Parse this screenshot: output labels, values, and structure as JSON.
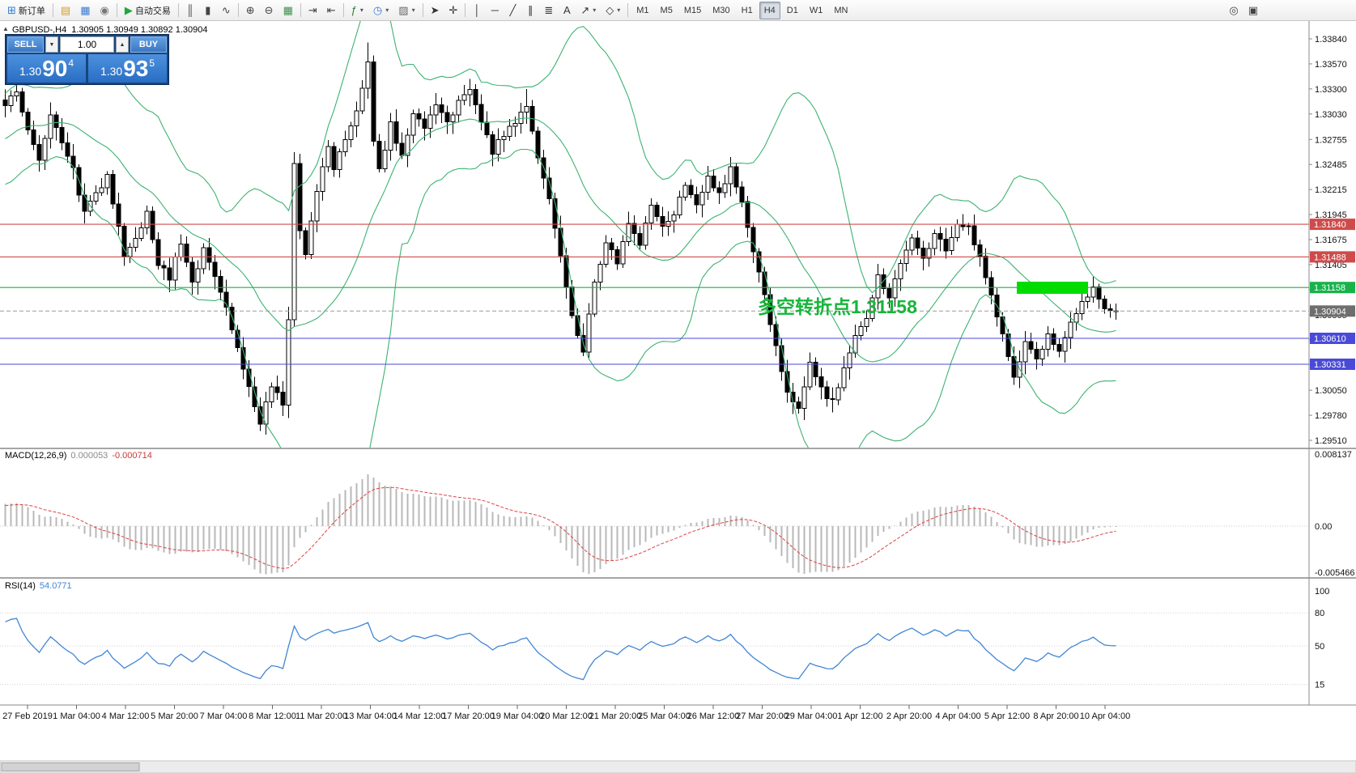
{
  "toolbar": {
    "caret_glyph": "▾",
    "groups": [
      {
        "items": [
          {
            "name": "new-order-button",
            "glyph": "⊞",
            "glyph_color": "#2f7dd0",
            "label": "新订单"
          }
        ]
      },
      {
        "items": [
          {
            "name": "market-watch-button",
            "glyph": "▤",
            "glyph_color": "#d99c20"
          },
          {
            "name": "data-window-button",
            "glyph": "▦",
            "glyph_color": "#3a7bd5"
          },
          {
            "name": "navigator-button",
            "glyph": "◉",
            "glyph_color": "#777777"
          }
        ]
      },
      {
        "items": [
          {
            "name": "autotrading-button",
            "glyph": "▶",
            "glyph_color": "#21a63f",
            "label": "自动交易"
          }
        ]
      },
      {
        "items": [
          {
            "name": "bar-chart-button",
            "glyph": "║",
            "glyph_color": "#444444"
          },
          {
            "name": "candle-chart-button",
            "glyph": "▮",
            "glyph_color": "#444444"
          },
          {
            "name": "line-chart-button",
            "glyph": "∿",
            "glyph_color": "#444444"
          }
        ]
      },
      {
        "items": [
          {
            "name": "zoom-in-button",
            "glyph": "⊕",
            "glyph_color": "#444444"
          },
          {
            "name": "zoom-out-button",
            "glyph": "⊖",
            "glyph_color": "#444444"
          },
          {
            "name": "tile-windows-button",
            "glyph": "▦",
            "glyph_color": "#3f8f4f"
          }
        ]
      },
      {
        "items": [
          {
            "name": "auto-scroll-button",
            "glyph": "⇥",
            "glyph_color": "#444444"
          },
          {
            "name": "chart-shift-button",
            "glyph": "⇤",
            "glyph_color": "#444444"
          }
        ]
      },
      {
        "items": [
          {
            "name": "indicators-button",
            "glyph": "ƒ",
            "glyph_color": "#2e7d32",
            "caret": true
          },
          {
            "name": "periods-button",
            "glyph": "◷",
            "glyph_color": "#3a7bd5",
            "caret": true
          },
          {
            "name": "templates-button",
            "glyph": "▨",
            "glyph_color": "#666666",
            "caret": true
          }
        ]
      },
      {
        "items": [
          {
            "name": "cursor-button",
            "glyph": "➤",
            "glyph_color": "#333333"
          },
          {
            "name": "crosshair-button",
            "glyph": "✛",
            "glyph_color": "#333333"
          }
        ]
      },
      {
        "items": [
          {
            "name": "vertical-line-button",
            "glyph": "│",
            "glyph_color": "#333333"
          },
          {
            "name": "horizontal-line-button",
            "glyph": "─",
            "glyph_color": "#333333"
          },
          {
            "name": "trendline-button",
            "glyph": "╱",
            "glyph_color": "#333333"
          },
          {
            "name": "channel-button",
            "glyph": "∥",
            "glyph_color": "#333333"
          },
          {
            "name": "fibonacci-button",
            "glyph": "≣",
            "glyph_color": "#333333"
          },
          {
            "name": "text-tool-button",
            "glyph": "A",
            "glyph_color": "#333333"
          },
          {
            "name": "arrows-tool-button",
            "glyph": "↗",
            "glyph_color": "#333333",
            "caret": true
          },
          {
            "name": "shapes-tool-button",
            "glyph": "◇",
            "glyph_color": "#333333",
            "caret": true
          }
        ]
      }
    ],
    "timeframes": {
      "items": [
        "M1",
        "M5",
        "M15",
        "M30",
        "H1",
        "H4",
        "D1",
        "W1",
        "MN"
      ],
      "active": "H4"
    },
    "right_items": [
      {
        "name": "zoom-window-button",
        "glyph": "◎",
        "glyph_color": "#444444"
      },
      {
        "name": "arrange-windows-button",
        "glyph": "▣",
        "glyph_color": "#444444"
      }
    ]
  },
  "chart": {
    "symbol_period": "GBPUSD-,H4",
    "ohlc": "1.30905 1.30949 1.30892 1.30904",
    "collapse_glyph": "▲"
  },
  "one_click": {
    "sell_label": "SELL",
    "buy_label": "BUY",
    "volume": "1.00",
    "spin_down": "▼",
    "spin_up": "▲",
    "sell": {
      "small": "1.30",
      "big": "90",
      "pip": "4"
    },
    "buy": {
      "small": "1.30",
      "big": "93",
      "pip": "5"
    }
  },
  "price_axis": {
    "ticks": [
      "1.33840",
      "1.33570",
      "1.33300",
      "1.33030",
      "1.32755",
      "1.32485",
      "1.32215",
      "1.31945",
      "1.31675",
      "1.31405",
      "1.31135",
      "1.30865",
      "1.30595",
      "1.30325",
      "1.30050",
      "1.29780",
      "1.29510"
    ]
  },
  "hlines": [
    {
      "price": 1.3184,
      "label": "1.31840",
      "color": "#cf4b4b"
    },
    {
      "price": 1.31488,
      "label": "1.31488",
      "color": "#cf4b4b"
    },
    {
      "price": 1.31158,
      "label": "1.31158",
      "color": "#18b24b"
    },
    {
      "price": 1.3061,
      "label": "1.30610",
      "color": "#4a4ad8"
    },
    {
      "price": 1.30331,
      "label": "1.30331",
      "color": "#4a4ad8"
    }
  ],
  "current_price": {
    "price": 1.30904,
    "label": "1.30904",
    "box_color": "#6e6e6e",
    "line_color": "#9a9a9a"
  },
  "annotations": {
    "text": "多空转折点1.31158",
    "color": "#17b53a",
    "rect_color": "#00dc00"
  },
  "indicators": {
    "macd": {
      "label": "MACD(12,26,9)",
      "v1": "0.000053",
      "v2": "-0.000714",
      "axis": [
        "0.008137",
        "0.00",
        "-0.005466"
      ]
    },
    "rsi": {
      "label": "RSI(14)",
      "value": "54.0771",
      "axis": [
        "100",
        "80",
        "50",
        "15"
      ]
    }
  },
  "time_axis": {
    "labels": [
      "27 Feb 2019",
      "1 Mar 04:00",
      "4 Mar 12:00",
      "5 Mar 20:00",
      "7 Mar 04:00",
      "8 Mar 12:00",
      "11 Mar 20:00",
      "13 Mar 04:00",
      "14 Mar 12:00",
      "17 Mar 20:00",
      "19 Mar 04:00",
      "20 Mar 12:00",
      "21 Mar 20:00",
      "25 Mar 04:00",
      "26 Mar 12:00",
      "27 Mar 20:00",
      "29 Mar 04:00",
      "1 Apr 12:00",
      "2 Apr 20:00",
      "4 Apr 04:00",
      "5 Apr 12:00",
      "8 Apr 20:00",
      "10 Apr 04:00"
    ]
  },
  "colors": {
    "bollinger": "#3cb371",
    "candle_up": "#ffffff",
    "candle_down": "#000000",
    "candle_border": "#000000",
    "macd_hist": "#b8b8b8",
    "macd_signal": "#e04040",
    "rsi_line": "#4186d5",
    "grid": "#c9c9c9"
  },
  "chart_data": {
    "type": "candlestick",
    "symbol": "GBPUSD-",
    "timeframe": "H4",
    "price_range": [
      1.2951,
      1.3384
    ],
    "count": 197,
    "overlays": [
      "Bollinger Bands(20,2)"
    ],
    "subcharts": [
      "MACD(12,26,9)",
      "RSI(14)"
    ],
    "anchors": [
      [
        0,
        1.3312
      ],
      [
        2,
        1.333
      ],
      [
        4,
        1.3286
      ],
      [
        6,
        1.3256
      ],
      [
        8,
        1.33
      ],
      [
        10,
        1.3272
      ],
      [
        12,
        1.3242
      ],
      [
        14,
        1.3196
      ],
      [
        16,
        1.3216
      ],
      [
        18,
        1.3236
      ],
      [
        21,
        1.3152
      ],
      [
        23,
        1.3166
      ],
      [
        25,
        1.3196
      ],
      [
        27,
        1.3142
      ],
      [
        29,
        1.3126
      ],
      [
        31,
        1.3166
      ],
      [
        33,
        1.3121
      ],
      [
        35,
        1.3156
      ],
      [
        37,
        1.3131
      ],
      [
        39,
        1.3092
      ],
      [
        41,
        1.3052
      ],
      [
        43,
        1.3006
      ],
      [
        45,
        1.2968
      ],
      [
        47,
        1.3012
      ],
      [
        49,
        1.2992
      ],
      [
        50,
        1.3082
      ],
      [
        51,
        1.3252
      ],
      [
        52,
        1.3176
      ],
      [
        53,
        1.3152
      ],
      [
        55,
        1.3222
      ],
      [
        57,
        1.3266
      ],
      [
        58,
        1.3242
      ],
      [
        60,
        1.3276
      ],
      [
        62,
        1.3306
      ],
      [
        64,
        1.3356
      ],
      [
        65,
        1.3272
      ],
      [
        66,
        1.3242
      ],
      [
        68,
        1.3292
      ],
      [
        70,
        1.3256
      ],
      [
        72,
        1.3302
      ],
      [
        74,
        1.3286
      ],
      [
        76,
        1.3312
      ],
      [
        78,
        1.3292
      ],
      [
        80,
        1.3316
      ],
      [
        82,
        1.3332
      ],
      [
        84,
        1.3296
      ],
      [
        86,
        1.3262
      ],
      [
        88,
        1.3282
      ],
      [
        90,
        1.3296
      ],
      [
        92,
        1.3312
      ],
      [
        94,
        1.3256
      ],
      [
        96,
        1.3212
      ],
      [
        98,
        1.3152
      ],
      [
        100,
        1.3086
      ],
      [
        102,
        1.3046
      ],
      [
        104,
        1.3122
      ],
      [
        106,
        1.3166
      ],
      [
        108,
        1.3142
      ],
      [
        110,
        1.3186
      ],
      [
        112,
        1.3162
      ],
      [
        114,
        1.3206
      ],
      [
        116,
        1.3182
      ],
      [
        118,
        1.3196
      ],
      [
        120,
        1.3226
      ],
      [
        122,
        1.3206
      ],
      [
        124,
        1.3236
      ],
      [
        126,
        1.3216
      ],
      [
        128,
        1.3246
      ],
      [
        130,
        1.3206
      ],
      [
        132,
        1.3156
      ],
      [
        134,
        1.3106
      ],
      [
        136,
        1.3052
      ],
      [
        138,
        1.3002
      ],
      [
        140,
        1.2986
      ],
      [
        142,
        1.3036
      ],
      [
        144,
        1.3006
      ],
      [
        146,
        1.2992
      ],
      [
        148,
        1.3026
      ],
      [
        150,
        1.3062
      ],
      [
        152,
        1.3082
      ],
      [
        154,
        1.3126
      ],
      [
        156,
        1.3106
      ],
      [
        158,
        1.3142
      ],
      [
        160,
        1.3166
      ],
      [
        162,
        1.3146
      ],
      [
        164,
        1.3176
      ],
      [
        166,
        1.3156
      ],
      [
        168,
        1.3186
      ],
      [
        170,
        1.3181
      ],
      [
        172,
        1.3146
      ],
      [
        174,
        1.3106
      ],
      [
        176,
        1.3066
      ],
      [
        178,
        1.3022
      ],
      [
        180,
        1.3056
      ],
      [
        182,
        1.3036
      ],
      [
        184,
        1.3066
      ],
      [
        186,
        1.3046
      ],
      [
        188,
        1.3076
      ],
      [
        190,
        1.3101
      ],
      [
        192,
        1.3116
      ],
      [
        194,
        1.3092
      ],
      [
        196,
        1.30904
      ]
    ]
  }
}
